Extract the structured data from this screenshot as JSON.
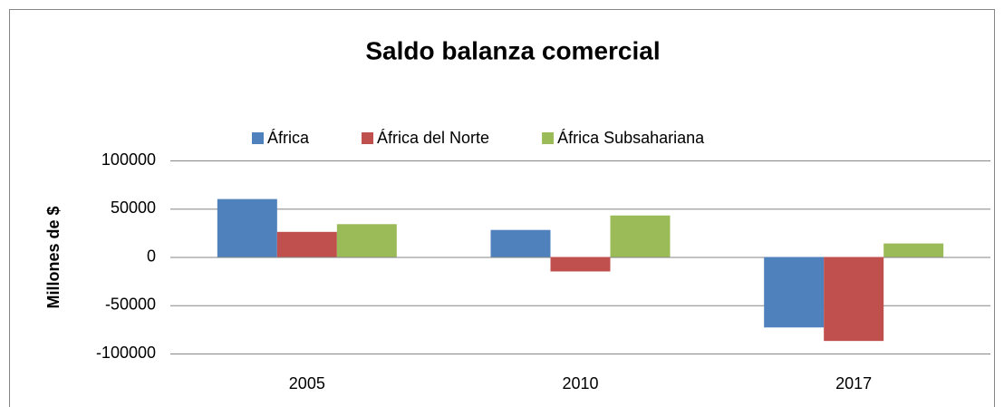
{
  "chart_data": {
    "type": "bar",
    "title": "Saldo balanza comercial",
    "y_label": "Millones de $",
    "categories": [
      "2005",
      "2010",
      "2017"
    ],
    "series": [
      {
        "name": "África",
        "color": "#4f81bd",
        "values": [
          60000,
          28000,
          -73000
        ]
      },
      {
        "name": "África del Norte",
        "color": "#c0504d",
        "values": [
          26000,
          -15000,
          -87000
        ]
      },
      {
        "name": "África Subsahariana",
        "color": "#9bbb59",
        "values": [
          34000,
          43000,
          14000
        ]
      }
    ],
    "ylim": [
      -100000,
      100000
    ],
    "yticks": [
      -100000,
      -50000,
      0,
      50000,
      100000
    ],
    "grid": true,
    "legend": "top"
  }
}
